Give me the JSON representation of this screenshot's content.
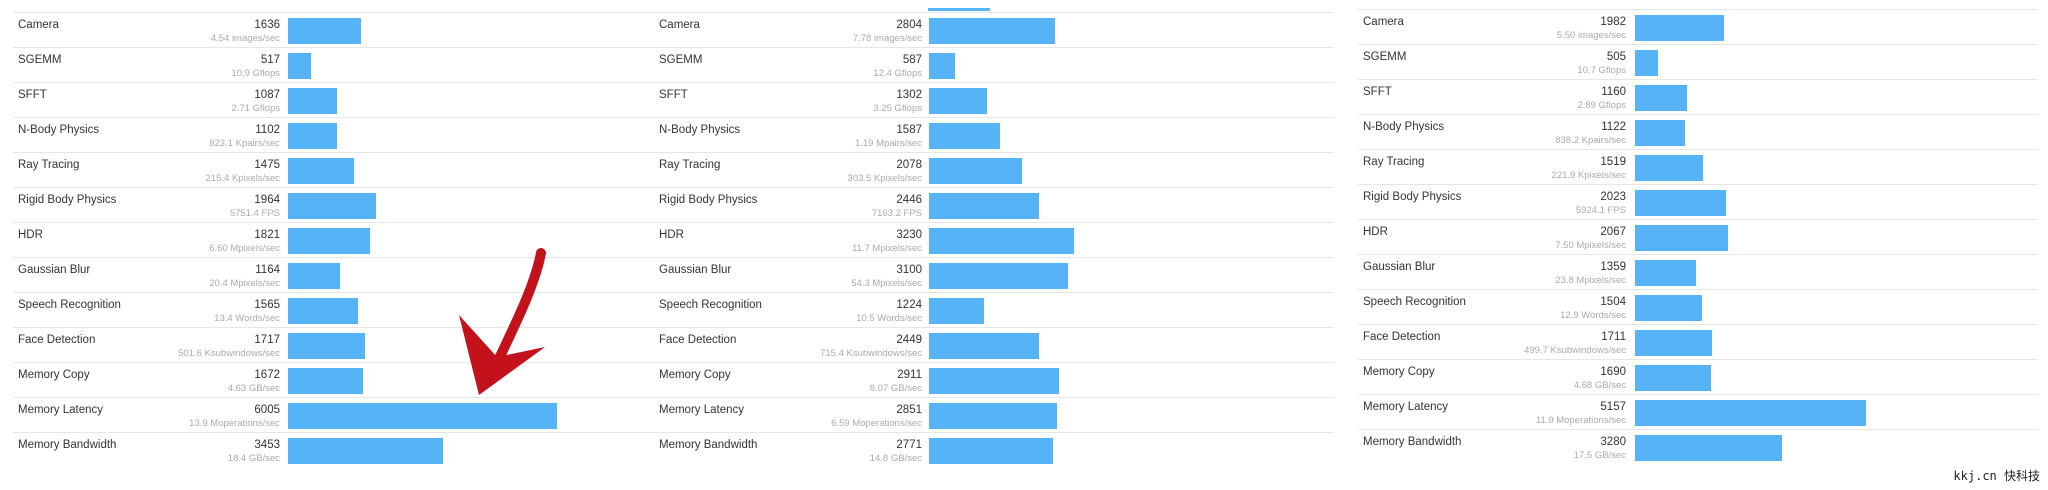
{
  "panels": [
    {
      "rows": [
        {
          "name": "Camera",
          "score": "1636",
          "unit": "4.54 images/sec"
        },
        {
          "name": "SGEMM",
          "score": "517",
          "unit": "10.9 Gflops"
        },
        {
          "name": "SFFT",
          "score": "1087",
          "unit": "2.71 Gflops"
        },
        {
          "name": "N-Body Physics",
          "score": "1102",
          "unit": "823.1 Kpairs/sec"
        },
        {
          "name": "Ray Tracing",
          "score": "1475",
          "unit": "215.4 Kpixels/sec"
        },
        {
          "name": "Rigid Body Physics",
          "score": "1964",
          "unit": "5751.4 FPS"
        },
        {
          "name": "HDR",
          "score": "1821",
          "unit": "6.60 Mpixels/sec"
        },
        {
          "name": "Gaussian Blur",
          "score": "1164",
          "unit": "20.4 Mpixels/sec"
        },
        {
          "name": "Speech Recognition",
          "score": "1565",
          "unit": "13.4 Words/sec"
        },
        {
          "name": "Face Detection",
          "score": "1717",
          "unit": "501.6 Ksubwindows/sec"
        },
        {
          "name": "Memory Copy",
          "score": "1672",
          "unit": "4.63 GB/sec"
        },
        {
          "name": "Memory Latency",
          "score": "6005",
          "unit": "13.9 Moperations/sec"
        },
        {
          "name": "Memory Bandwidth",
          "score": "3453",
          "unit": "18.4 GB/sec"
        }
      ]
    },
    {
      "rows": [
        {
          "name": "Camera",
          "score": "2804",
          "unit": "7.78 images/sec"
        },
        {
          "name": "SGEMM",
          "score": "587",
          "unit": "12.4 Gflops"
        },
        {
          "name": "SFFT",
          "score": "1302",
          "unit": "3.25 Gflops"
        },
        {
          "name": "N-Body Physics",
          "score": "1587",
          "unit": "1.19 Mpairs/sec"
        },
        {
          "name": "Ray Tracing",
          "score": "2078",
          "unit": "303.5 Kpixels/sec"
        },
        {
          "name": "Rigid Body Physics",
          "score": "2446",
          "unit": "7163.2 FPS"
        },
        {
          "name": "HDR",
          "score": "3230",
          "unit": "11.7 Mpixels/sec"
        },
        {
          "name": "Gaussian Blur",
          "score": "3100",
          "unit": "54.3 Mpixels/sec"
        },
        {
          "name": "Speech Recognition",
          "score": "1224",
          "unit": "10.5 Words/sec"
        },
        {
          "name": "Face Detection",
          "score": "2449",
          "unit": "715.4 Ksubwindows/sec"
        },
        {
          "name": "Memory Copy",
          "score": "2911",
          "unit": "8.07 GB/sec"
        },
        {
          "name": "Memory Latency",
          "score": "2851",
          "unit": "6.59 Moperations/sec"
        },
        {
          "name": "Memory Bandwidth",
          "score": "2771",
          "unit": "14.8 GB/sec"
        }
      ]
    },
    {
      "rows": [
        {
          "name": "Camera",
          "score": "1982",
          "unit": "5.50 images/sec"
        },
        {
          "name": "SGEMM",
          "score": "505",
          "unit": "10.7 Gflops"
        },
        {
          "name": "SFFT",
          "score": "1160",
          "unit": "2.89 Gflops"
        },
        {
          "name": "N-Body Physics",
          "score": "1122",
          "unit": "838.2 Kpairs/sec"
        },
        {
          "name": "Ray Tracing",
          "score": "1519",
          "unit": "221.9 Kpixels/sec"
        },
        {
          "name": "Rigid Body Physics",
          "score": "2023",
          "unit": "5924.1 FPS"
        },
        {
          "name": "HDR",
          "score": "2067",
          "unit": "7.50 Mpixels/sec"
        },
        {
          "name": "Gaussian Blur",
          "score": "1359",
          "unit": "23.8 Mpixels/sec"
        },
        {
          "name": "Speech Recognition",
          "score": "1504",
          "unit": "12.9 Words/sec"
        },
        {
          "name": "Face Detection",
          "score": "1711",
          "unit": "499.7 Ksubwindows/sec"
        },
        {
          "name": "Memory Copy",
          "score": "1690",
          "unit": "4.68 GB/sec"
        },
        {
          "name": "Memory Latency",
          "score": "5157",
          "unit": "11.9 Moperations/sec"
        },
        {
          "name": "Memory Bandwidth",
          "score": "3280",
          "unit": "17.5 GB/sec"
        }
      ]
    }
  ],
  "colors": {
    "bar": "#56b4f6",
    "arrow": "#c4121c"
  },
  "bar_scale_max": 6005,
  "watermark": "kkj.cn 快科技"
}
